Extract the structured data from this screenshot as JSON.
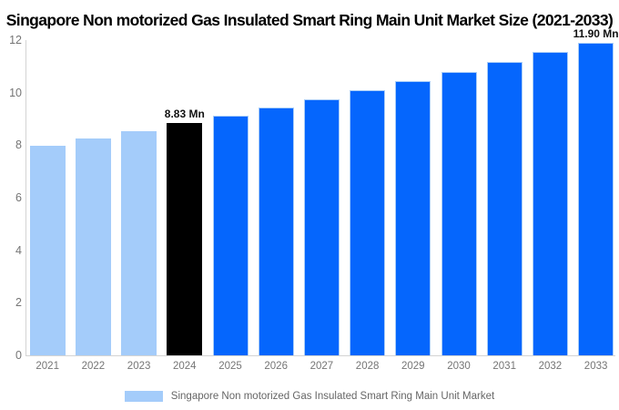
{
  "chart_data": {
    "type": "bar",
    "title": "Singapore Non motorized Gas Insulated Smart Ring Main Unit Market Size (2021-2033)",
    "categories": [
      "2021",
      "2022",
      "2023",
      "2024",
      "2025",
      "2026",
      "2027",
      "2028",
      "2029",
      "2030",
      "2031",
      "2032",
      "2033"
    ],
    "values": [
      7.98,
      8.25,
      8.53,
      8.83,
      9.13,
      9.44,
      9.76,
      10.09,
      10.44,
      10.79,
      11.16,
      11.54,
      11.9
    ],
    "unit": "Mn",
    "xlabel": "",
    "ylabel": "",
    "ylim": [
      0,
      12
    ],
    "yticks": [
      0,
      2,
      4,
      6,
      8,
      10,
      12
    ],
    "grid": false,
    "legend_position": "bottom",
    "legend_label": "Singapore Non motorized Gas Insulated Smart Ring Main Unit Market",
    "bar_colors": [
      "light",
      "light",
      "light",
      "highlight",
      "primary",
      "primary",
      "primary",
      "primary",
      "primary",
      "primary",
      "primary",
      "primary",
      "primary"
    ],
    "palette": {
      "light": "#a4ccfa",
      "highlight": "#000000",
      "primary": "#0566fd",
      "primary_edge": "#a9cdf8",
      "axis": "#d4d4d4",
      "tick_text": "#757575",
      "legend_text": "#666666",
      "annotation_text": "#111111"
    },
    "annotations": [
      {
        "category": "2024",
        "label": "8.83 Mn"
      },
      {
        "category": "2033",
        "label": "11.90 Mn"
      }
    ]
  }
}
